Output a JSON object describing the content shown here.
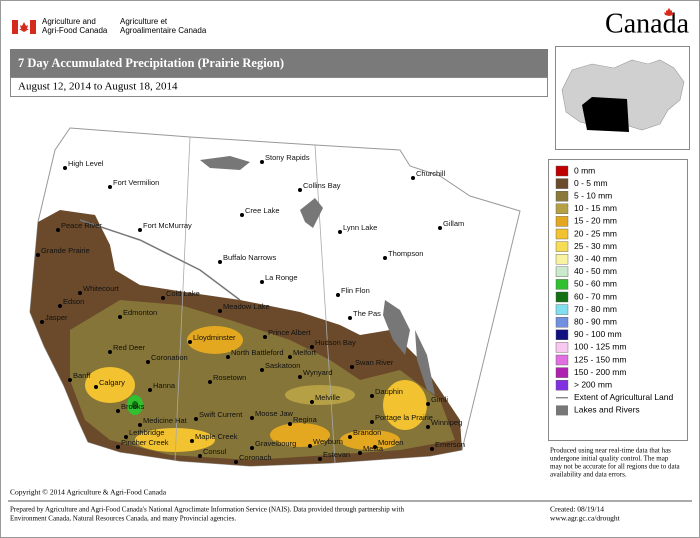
{
  "header": {
    "dept_en": [
      "Agriculture and",
      "Agri-Food Canada"
    ],
    "dept_fr": [
      "Agriculture et",
      "Agroalimentaire Canada"
    ],
    "wordmark": "Canada"
  },
  "title": "7 Day Accumulated Precipitation (Prairie Region)",
  "subtitle": "August 12, 2014 to August 18, 2014",
  "legend": {
    "items": [
      {
        "label": "0 mm",
        "color": "#c00000"
      },
      {
        "label": "0 - 5 mm",
        "color": "#6b4a2b"
      },
      {
        "label": "5 - 10 mm",
        "color": "#8a7a3a"
      },
      {
        "label": "10 - 15 mm",
        "color": "#b5a045"
      },
      {
        "label": "15 - 20 mm",
        "color": "#e3a820"
      },
      {
        "label": "20 - 25 mm",
        "color": "#f2c230"
      },
      {
        "label": "25 - 30 mm",
        "color": "#f6dc55"
      },
      {
        "label": "30 - 40 mm",
        "color": "#f7f3a0"
      },
      {
        "label": "40 - 50 mm",
        "color": "#cbeacb"
      },
      {
        "label": "50 - 60 mm",
        "color": "#30c030"
      },
      {
        "label": "60 - 70 mm",
        "color": "#127012"
      },
      {
        "label": "70 - 80 mm",
        "color": "#80e0f0"
      },
      {
        "label": "80 - 90 mm",
        "color": "#7090e0"
      },
      {
        "label": "90 - 100 mm",
        "color": "#101080"
      },
      {
        "label": "100 - 125 mm",
        "color": "#f8c8f0"
      },
      {
        "label": "125 - 150 mm",
        "color": "#e070e0"
      },
      {
        "label": "150 - 200 mm",
        "color": "#b020b0"
      },
      {
        "label": "> 200 mm",
        "color": "#8030e0"
      }
    ],
    "extent": "Extent of Agricultural Land",
    "lakes": "Lakes and Rivers"
  },
  "cities": [
    "High Level",
    "Fort Vermilion",
    "Peace River",
    "Grande Prairie",
    "Fort McMurray",
    "Stony Rapids",
    "Collins Bay",
    "Churchill",
    "Cree Lake",
    "Lynn Lake",
    "Gillam",
    "Buffalo Narrows",
    "Thompson",
    "Whitecourt",
    "Cold Lake",
    "Edson",
    "La Ronge",
    "Flin Flon",
    "Edmonton",
    "Meadow Lake",
    "The Pas",
    "Jasper",
    "Lloydminster",
    "Prince Albert",
    "Red Deer",
    "Coronation",
    "North Battleford",
    "Hudson Bay",
    "Melfort",
    "Hanna",
    "Saskatoon",
    "Swan River",
    "Wynyard",
    "Banff",
    "Calgary",
    "Rosetown",
    "Dauphin",
    "Brooks",
    "Gimli",
    "Medicine Hat",
    "Swift Current",
    "Moose Jaw",
    "Melville",
    "Lethbridge",
    "Regina",
    "Portage la Prairie",
    "Winnipeg",
    "Maple Creek",
    "Brandon",
    "Pincher Creek",
    "Consul",
    "Gravelbourg",
    "Weyburn",
    "Morden",
    "Emerson",
    "Coronach",
    "Estevan",
    "Melita"
  ],
  "note": [
    "Produced using near real-time data that has",
    "undergone initial quality control.  The map",
    "may not be accurate for all regions due to data",
    "availability and data errors."
  ],
  "copyright": "Copyright © 2014 Agriculture & Agri-Food Canada",
  "footer": {
    "prepared": [
      "Prepared by Agriculture and Agri-Food Canada's National Agroclimate Information Service (NAIS).  Data provided through partnership with",
      "Environment Canada, Natural Resources Canada, and many Provincial agencies."
    ],
    "created": "Created: 08/19/14",
    "url": "www.agr.gc.ca/drought"
  }
}
